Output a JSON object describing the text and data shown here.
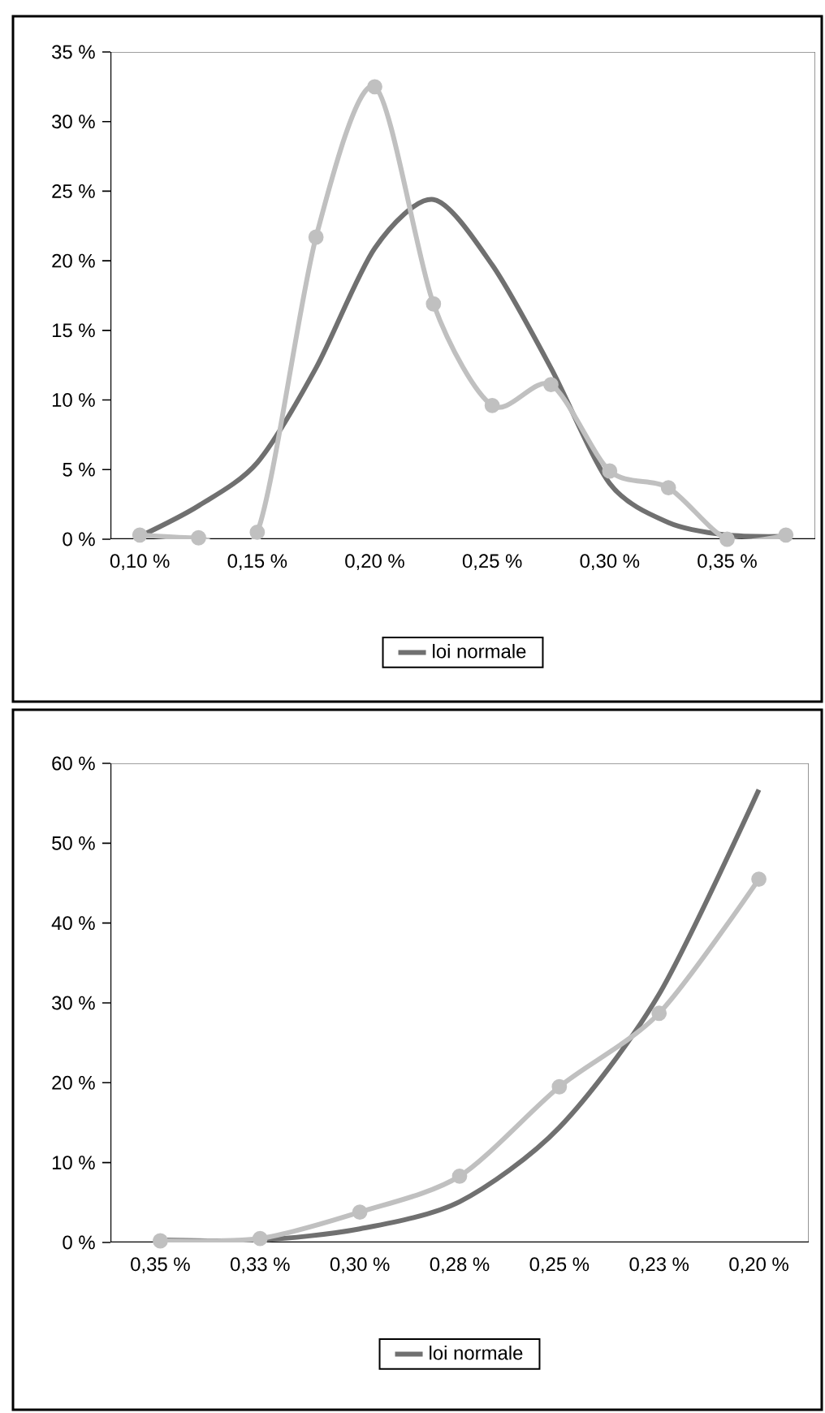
{
  "chart_data": [
    {
      "type": "line",
      "categories": [
        "0,10 %",
        null,
        "0,15 %",
        null,
        "0,20 %",
        null,
        "0,25 %",
        null,
        "0,30 %",
        null,
        "0,35 %",
        null
      ],
      "ylim": [
        0,
        35
      ],
      "yticks": [
        {
          "value": 0,
          "label": "0 %"
        },
        {
          "value": 5,
          "label": "5 %"
        },
        {
          "value": 10,
          "label": "10 %"
        },
        {
          "value": 15,
          "label": "15 %"
        },
        {
          "value": 20,
          "label": "20 %"
        },
        {
          "value": 25,
          "label": "25 %"
        },
        {
          "value": 30,
          "label": "30 %"
        },
        {
          "value": 35,
          "label": "35 %"
        }
      ],
      "legend": "bottom",
      "grid": false,
      "series": [
        {
          "name": "loi normale",
          "color": "#707070",
          "marker": "none",
          "values": [
            0.2,
            2.4,
            5.5,
            12.3,
            20.9,
            24.4,
            19.7,
            12.3,
            4.0,
            1.2,
            0.3,
            0.2
          ]
        },
        {
          "color": "#c0c0c0",
          "marker": "circle",
          "values": [
            0.3,
            0.1,
            0.5,
            21.7,
            32.5,
            16.9,
            9.6,
            11.1,
            4.9,
            3.7,
            0,
            0.3
          ]
        }
      ]
    },
    {
      "type": "line",
      "categories": [
        "0,35 %",
        "0,33 %",
        "0,30 %",
        "0,28 %",
        "0,25 %",
        "0,23 %",
        "0,20 %"
      ],
      "ylim": [
        0,
        60
      ],
      "yticks": [
        {
          "value": 0,
          "label": "0 %"
        },
        {
          "value": 10,
          "label": "10 %"
        },
        {
          "value": 20,
          "label": "20 %"
        },
        {
          "value": 30,
          "label": "30 %"
        },
        {
          "value": 40,
          "label": "40 %"
        },
        {
          "value": 50,
          "label": "50 %"
        },
        {
          "value": 60,
          "label": "60 %"
        }
      ],
      "legend": "bottom",
      "grid": false,
      "series": [
        {
          "name": "loi normale",
          "color": "#707070",
          "marker": "none",
          "values": [
            0.3,
            0.3,
            1.7,
            5.1,
            14.4,
            31.1,
            56.7
          ]
        },
        {
          "color": "#c0c0c0",
          "marker": "circle",
          "values": [
            0.2,
            0.5,
            3.8,
            8.3,
            19.5,
            28.7,
            45.5
          ]
        }
      ]
    }
  ]
}
